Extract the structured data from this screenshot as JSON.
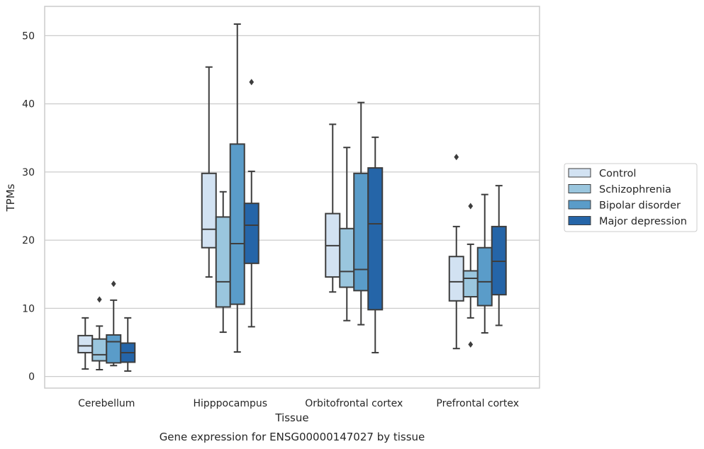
{
  "chart_data": {
    "type": "box",
    "title": "",
    "caption": "Gene expression for ENSG00000147027 by tissue",
    "xlabel": "Tissue",
    "ylabel": "TPMs",
    "ylim": [
      -1.7,
      54.3
    ],
    "yticks": [
      0,
      10,
      20,
      30,
      40,
      50
    ],
    "grid": "horizontal",
    "legend_position": "right",
    "categories": [
      "Cerebellum",
      "Hipppocampus",
      "Orbitofrontal cortex",
      "Prefrontal cortex"
    ],
    "series": [
      {
        "name": "Control",
        "color": "#d2e2f2",
        "boxes": [
          {
            "whisker_low": 1.1,
            "q1": 3.5,
            "median": 4.5,
            "q3": 6.0,
            "whisker_high": 8.6,
            "outliers": []
          },
          {
            "whisker_low": 14.6,
            "q1": 18.9,
            "median": 21.6,
            "q3": 29.8,
            "whisker_high": 45.4,
            "outliers": []
          },
          {
            "whisker_low": 12.4,
            "q1": 14.6,
            "median": 19.2,
            "q3": 23.9,
            "whisker_high": 37.0,
            "outliers": []
          },
          {
            "whisker_low": 4.1,
            "q1": 11.1,
            "median": 13.9,
            "q3": 17.6,
            "whisker_high": 22.0,
            "outliers": [
              32.2
            ]
          }
        ]
      },
      {
        "name": "Schizophrenia",
        "color": "#9ac6de",
        "boxes": [
          {
            "whisker_low": 1.0,
            "q1": 2.3,
            "median": 3.2,
            "q3": 5.5,
            "whisker_high": 7.4,
            "outliers": [
              11.3
            ]
          },
          {
            "whisker_low": 6.5,
            "q1": 10.2,
            "median": 13.9,
            "q3": 23.4,
            "whisker_high": 27.1,
            "outliers": []
          },
          {
            "whisker_low": 8.2,
            "q1": 13.1,
            "median": 15.4,
            "q3": 21.7,
            "whisker_high": 33.6,
            "outliers": []
          },
          {
            "whisker_low": 8.6,
            "q1": 11.7,
            "median": 14.4,
            "q3": 15.5,
            "whisker_high": 19.4,
            "outliers": [
              25.0,
              4.7
            ]
          }
        ]
      },
      {
        "name": "Bipolar disorder",
        "color": "#5a9cc9",
        "boxes": [
          {
            "whisker_low": 1.6,
            "q1": 2.0,
            "median": 5.1,
            "q3": 6.1,
            "whisker_high": 11.2,
            "outliers": [
              13.6
            ]
          },
          {
            "whisker_low": 3.6,
            "q1": 10.6,
            "median": 19.5,
            "q3": 34.1,
            "whisker_high": 51.7,
            "outliers": []
          },
          {
            "whisker_low": 7.6,
            "q1": 12.6,
            "median": 15.7,
            "q3": 29.8,
            "whisker_high": 40.2,
            "outliers": []
          },
          {
            "whisker_low": 6.4,
            "q1": 10.4,
            "median": 13.9,
            "q3": 18.9,
            "whisker_high": 26.7,
            "outliers": []
          }
        ]
      },
      {
        "name": "Major depression",
        "color": "#2565a8",
        "boxes": [
          {
            "whisker_low": 0.8,
            "q1": 2.1,
            "median": 3.5,
            "q3": 4.9,
            "whisker_high": 8.6,
            "outliers": []
          },
          {
            "whisker_low": 7.3,
            "q1": 16.6,
            "median": 22.2,
            "q3": 25.4,
            "whisker_high": 30.1,
            "outliers": [
              43.2
            ]
          },
          {
            "whisker_low": 3.5,
            "q1": 9.8,
            "median": 22.4,
            "q3": 30.6,
            "whisker_high": 35.1,
            "outliers": []
          },
          {
            "whisker_low": 7.5,
            "q1": 12.0,
            "median": 16.9,
            "q3": 22.0,
            "whisker_high": 28.0,
            "outliers": []
          }
        ]
      }
    ]
  }
}
